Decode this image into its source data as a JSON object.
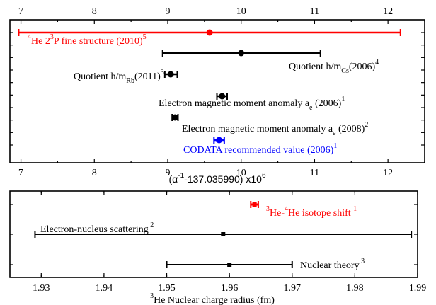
{
  "chart_data": [
    {
      "type": "scatter",
      "variant": "error-bar",
      "title": "",
      "xlabel": "(α⁻¹-137.035990) x10⁶",
      "xlim": [
        6.85,
        12.5
      ],
      "x_ticks": [
        7,
        8,
        9,
        10,
        11,
        12
      ],
      "x_tick_labels": [
        "7",
        "8",
        "9",
        "10",
        "11",
        "12"
      ],
      "tick_labels_top": true,
      "y_ticks_count": 10,
      "grid": false,
      "points": [
        {
          "label": "⁴He 2³P fine structure (2010)⁵",
          "x": 9.57,
          "xerr_low": 6.97,
          "xerr_high": 12.17,
          "color": "#ff0000"
        },
        {
          "label": "Quotient h/m_Cs(2006)⁴",
          "x": 10.0,
          "xerr_low": 8.93,
          "xerr_high": 11.08,
          "color": "#000000"
        },
        {
          "label": "Quotient h/m_Rb(2011)³",
          "x": 9.04,
          "xerr_low": 8.96,
          "xerr_high": 9.13,
          "color": "#000000"
        },
        {
          "label": "Electron magnetic moment anomaly a_e (2006)¹",
          "x": 9.74,
          "xerr_low": 9.67,
          "xerr_high": 9.81,
          "color": "#000000"
        },
        {
          "label": "Electron magnetic moment anomaly a_e (2008)²",
          "x": 9.1,
          "xerr_low": 9.06,
          "xerr_high": 9.14,
          "color": "#000000"
        },
        {
          "label": "CODATA recommended value (2006)¹",
          "x": 9.7,
          "xerr_low": 9.63,
          "xerr_high": 9.77,
          "color": "#0000ff"
        }
      ]
    },
    {
      "type": "scatter",
      "variant": "error-bar",
      "title": "",
      "xlabel": "³He Nuclear charge radius (fm)",
      "xlim": [
        1.925,
        1.99
      ],
      "x_ticks": [
        1.93,
        1.94,
        1.95,
        1.96,
        1.97,
        1.98,
        1.99
      ],
      "x_tick_labels": [
        "1.93",
        "1.94",
        "1.95",
        "1.96",
        "1.97",
        "1.98",
        "1.99"
      ],
      "y_ticks_count": 3,
      "grid": false,
      "points": [
        {
          "label": "³He-⁴He isotope shift¹",
          "x": 1.964,
          "xerr_low": 1.9634,
          "xerr_high": 1.9646,
          "color": "#ff0000"
        },
        {
          "label": "Electron-nucleus scattering²",
          "x": 1.959,
          "xerr_low": 1.929,
          "xerr_high": 1.989,
          "color": "#000000"
        },
        {
          "label": "Nuclear theory³",
          "x": 1.96,
          "xerr_low": 1.95,
          "xerr_high": 1.97,
          "color": "#000000"
        }
      ]
    }
  ]
}
